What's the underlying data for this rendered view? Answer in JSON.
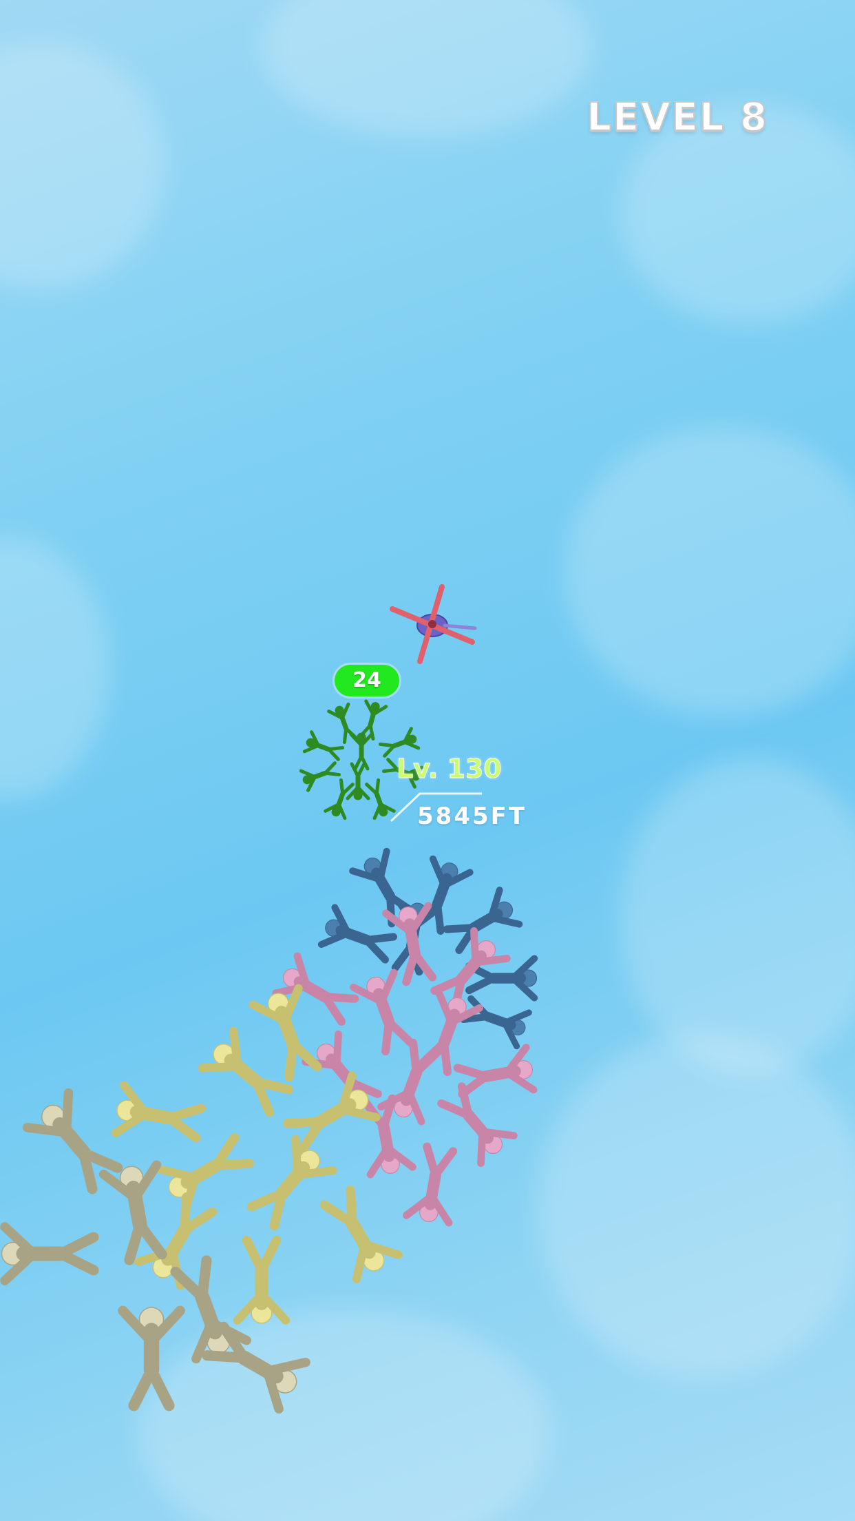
{
  "hud": {
    "level_label": "LEVEL 8"
  },
  "player_group": {
    "count": "24",
    "level_tag": "Lv. 130",
    "altitude": "5845FT",
    "color": "#2e8b22"
  },
  "icons": {
    "helicopter": "helicopter-icon"
  },
  "colors": {
    "sky": "#6cc8f2",
    "badge": "#22e81f",
    "crowd_blue": "#4a7fae",
    "crowd_pink": "#e6a8c8",
    "crowd_yellow": "#ece69a",
    "crowd_beige": "#ddd8b8"
  }
}
